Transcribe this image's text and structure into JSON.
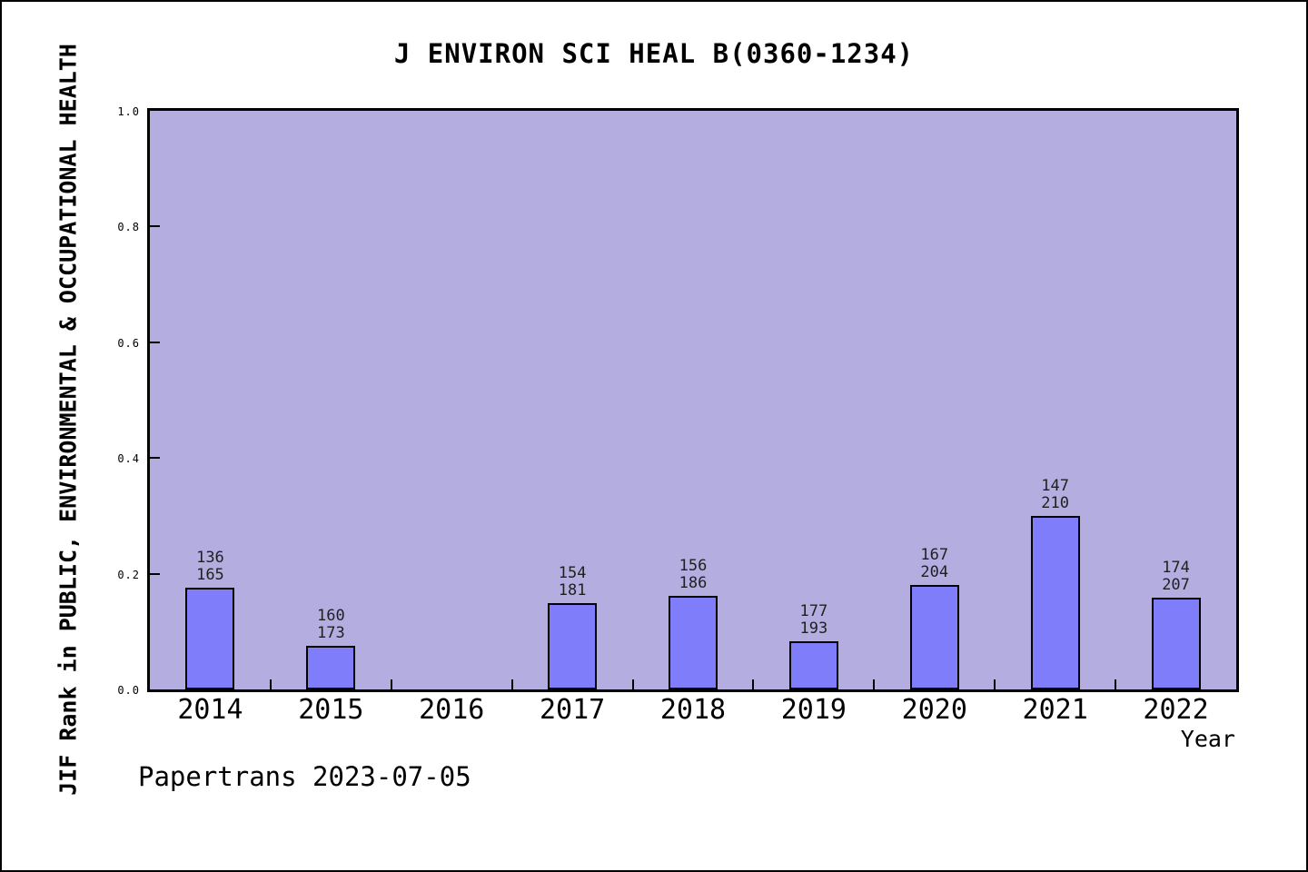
{
  "figure": {
    "title": "J ENVIRON SCI HEAL B(0360-1234)",
    "xlabel": "Year",
    "ylabel": "JIF Rank in PUBLIC, ENVIRONMENTAL & OCCUPATIONAL HEALTH",
    "watermark": "Papertrans 2023-07-05"
  },
  "chart_data": {
    "type": "bar",
    "title": "J ENVIRON SCI HEAL B(0360-1234)",
    "xlabel": "Year",
    "ylabel": "JIF Rank in PUBLIC, ENVIRONMENTAL & OCCUPATIONAL HEALTH",
    "ylim": [
      0.0,
      1.0
    ],
    "yticks": [
      0.0,
      0.2,
      0.4,
      0.6,
      0.8,
      1.0
    ],
    "grid": false,
    "legend": null,
    "categories": [
      "2014",
      "2015",
      "2016",
      "2017",
      "2018",
      "2019",
      "2020",
      "2021",
      "2022"
    ],
    "bar_value_note": "bar height = 1 - rank/total; each bar annotated with rank (top line) over total (bottom line)",
    "bars": [
      {
        "year": "2014",
        "rank": 136,
        "total": 165,
        "value": 0.176
      },
      {
        "year": "2015",
        "rank": 160,
        "total": 173,
        "value": 0.075
      },
      {
        "year": "2016",
        "rank": null,
        "total": null,
        "value": null
      },
      {
        "year": "2017",
        "rank": 154,
        "total": 181,
        "value": 0.149
      },
      {
        "year": "2018",
        "rank": 156,
        "total": 186,
        "value": 0.161
      },
      {
        "year": "2019",
        "rank": 177,
        "total": 193,
        "value": 0.083
      },
      {
        "year": "2020",
        "rank": 167,
        "total": 204,
        "value": 0.181
      },
      {
        "year": "2021",
        "rank": 147,
        "total": 210,
        "value": 0.3
      },
      {
        "year": "2022",
        "rank": 174,
        "total": 207,
        "value": 0.159
      }
    ],
    "colors": {
      "plot_background": "#b4addf",
      "bar_fill": "#7f7dfa",
      "bar_edge": "#000000",
      "axis": "#000000"
    }
  }
}
